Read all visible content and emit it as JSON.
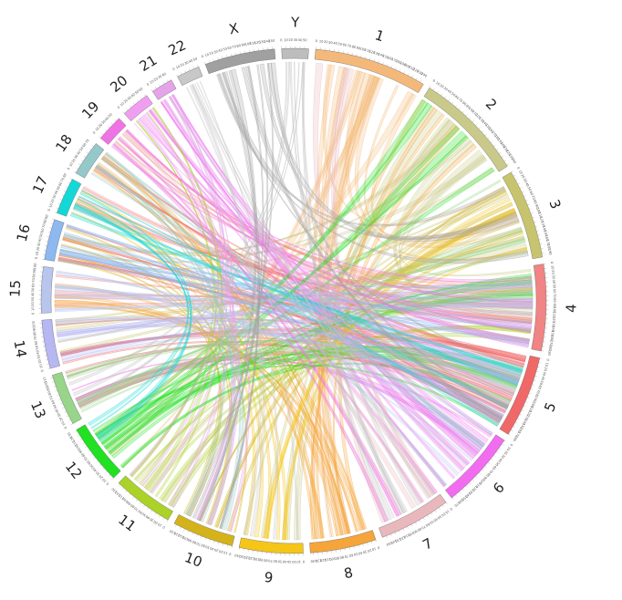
{
  "diagram": {
    "type": "chord",
    "gap_degrees": 1.6,
    "link_opacity": 0.28,
    "chromosomes": [
      {
        "name": "1",
        "size": 249,
        "color": "#f4b97a"
      },
      {
        "name": "2",
        "size": 243,
        "color": "#c9c98a"
      },
      {
        "name": "3",
        "size": 198,
        "color": "#c8c46e"
      },
      {
        "name": "4",
        "size": 191,
        "color": "#f18484"
      },
      {
        "name": "5",
        "size": 181,
        "color": "#f06868"
      },
      {
        "name": "6",
        "size": 171,
        "color": "#f26cf0"
      },
      {
        "name": "7",
        "size": 159,
        "color": "#e9b8bc"
      },
      {
        "name": "8",
        "size": 146,
        "color": "#f5a53a"
      },
      {
        "name": "9",
        "size": 141,
        "color": "#f5c518"
      },
      {
        "name": "10",
        "size": 136,
        "color": "#d4b31a"
      },
      {
        "name": "11",
        "size": 135,
        "color": "#aad228"
      },
      {
        "name": "12",
        "size": 133,
        "color": "#22e022"
      },
      {
        "name": "13",
        "size": 115,
        "color": "#98d48a"
      },
      {
        "name": "14",
        "size": 107,
        "color": "#b7b7f2"
      },
      {
        "name": "15",
        "size": 102,
        "color": "#b8c6ee"
      },
      {
        "name": "16",
        "size": 90,
        "color": "#8db8f0"
      },
      {
        "name": "17",
        "size": 81,
        "color": "#14d8d8"
      },
      {
        "name": "18",
        "size": 78,
        "color": "#95c8c8"
      },
      {
        "name": "19",
        "size": 59,
        "color": "#f073e6"
      },
      {
        "name": "20",
        "size": 63,
        "color": "#f09ff0"
      },
      {
        "name": "21",
        "size": 48,
        "color": "#e4a4e8"
      },
      {
        "name": "22",
        "size": 51,
        "color": "#c8c8c8"
      },
      {
        "name": "X",
        "size": 155,
        "color": "#a0a0a0"
      },
      {
        "name": "Y",
        "size": 59,
        "color": "#bdbdbd"
      }
    ],
    "link_counts": [
      {
        "from": "1",
        "to": "8",
        "count": 8
      },
      {
        "from": "1",
        "to": "3",
        "count": 5
      },
      {
        "from": "1",
        "to": "12",
        "count": 5
      },
      {
        "from": "2",
        "to": "9",
        "count": 6
      },
      {
        "from": "2",
        "to": "16",
        "count": 5
      },
      {
        "from": "2",
        "to": "4",
        "count": 4
      },
      {
        "from": "3",
        "to": "14",
        "count": 5
      },
      {
        "from": "3",
        "to": "11",
        "count": 5
      },
      {
        "from": "4",
        "to": "17",
        "count": 6
      },
      {
        "from": "4",
        "to": "15",
        "count": 5
      },
      {
        "from": "4",
        "to": "19",
        "count": 5
      },
      {
        "from": "5",
        "to": "16",
        "count": 7
      },
      {
        "from": "5",
        "to": "14",
        "count": 6
      },
      {
        "from": "5",
        "to": "18",
        "count": 6
      },
      {
        "from": "5",
        "to": "13",
        "count": 6
      },
      {
        "from": "6",
        "to": "21",
        "count": 6
      },
      {
        "from": "6",
        "to": "20",
        "count": 5
      },
      {
        "from": "6",
        "to": "13",
        "count": 4
      },
      {
        "from": "7",
        "to": "1",
        "count": 4
      },
      {
        "from": "7",
        "to": "19",
        "count": 5
      },
      {
        "from": "8",
        "to": "18",
        "count": 8
      },
      {
        "from": "8",
        "to": "15",
        "count": 6
      },
      {
        "from": "8",
        "to": "2",
        "count": 5
      },
      {
        "from": "9",
        "to": "3",
        "count": 5
      },
      {
        "from": "9",
        "to": "17",
        "count": 5
      },
      {
        "from": "10",
        "to": "3",
        "count": 5
      },
      {
        "from": "10",
        "to": "16",
        "count": 5
      },
      {
        "from": "11",
        "to": "4",
        "count": 6
      },
      {
        "from": "11",
        "to": "20",
        "count": 5
      },
      {
        "from": "12",
        "to": "5",
        "count": 8
      },
      {
        "from": "12",
        "to": "4",
        "count": 5
      },
      {
        "from": "12",
        "to": "2",
        "count": 6
      },
      {
        "from": "13",
        "to": "5",
        "count": 6
      },
      {
        "from": "13",
        "to": "3",
        "count": 5
      },
      {
        "from": "14",
        "to": "4",
        "count": 6
      },
      {
        "from": "14",
        "to": "5",
        "count": 5
      },
      {
        "from": "15",
        "to": "6",
        "count": 5
      },
      {
        "from": "15",
        "to": "4",
        "count": 5
      },
      {
        "from": "16",
        "to": "5",
        "count": 7
      },
      {
        "from": "16",
        "to": "4",
        "count": 6
      },
      {
        "from": "17",
        "to": "5",
        "count": 6
      },
      {
        "from": "17",
        "to": "12",
        "count": 5
      },
      {
        "from": "18",
        "to": "6",
        "count": 5
      },
      {
        "from": "18",
        "to": "10",
        "count": 5
      },
      {
        "from": "19",
        "to": "4",
        "count": 5
      },
      {
        "from": "19",
        "to": "7",
        "count": 5
      },
      {
        "from": "20",
        "to": "5",
        "count": 5
      },
      {
        "from": "20",
        "to": "10",
        "count": 4
      },
      {
        "from": "21",
        "to": "6",
        "count": 6
      },
      {
        "from": "21",
        "to": "11",
        "count": 5
      },
      {
        "from": "22",
        "to": "7",
        "count": 4
      },
      {
        "from": "22",
        "to": "9",
        "count": 4
      },
      {
        "from": "X",
        "to": "3",
        "count": 5
      },
      {
        "from": "X",
        "to": "10",
        "count": 6
      },
      {
        "from": "X",
        "to": "5",
        "count": 4
      },
      {
        "from": "Y",
        "to": "7",
        "count": 4
      },
      {
        "from": "Y",
        "to": "13",
        "count": 4
      }
    ]
  }
}
